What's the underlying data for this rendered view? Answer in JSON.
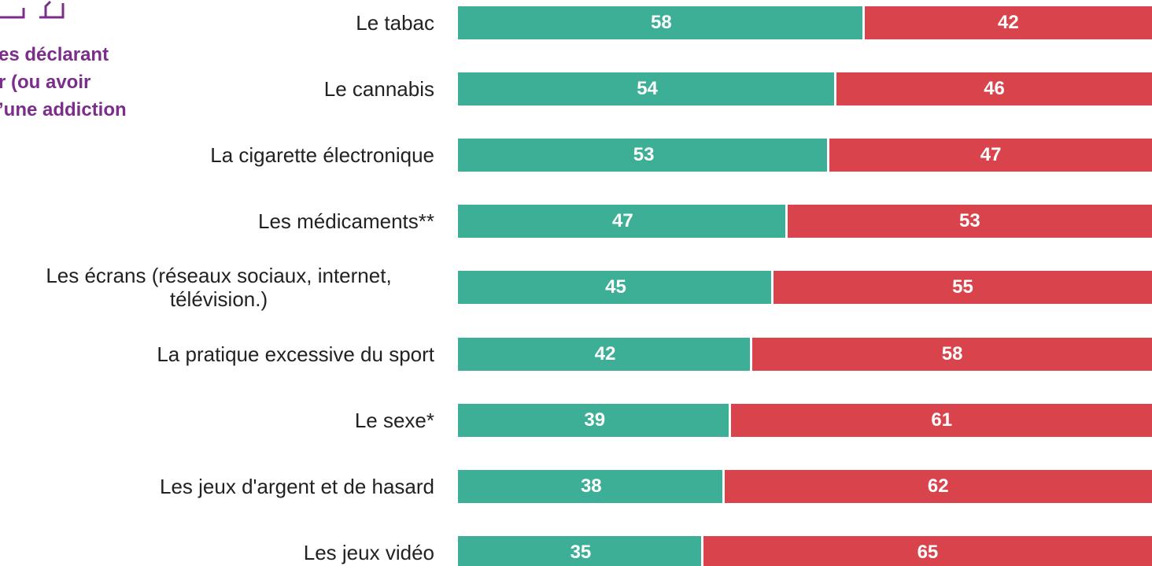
{
  "chart_data": {
    "type": "stacked-bar-horizontal",
    "annotations": [
      "es déclarant",
      "r (ou avoir",
      "’une addiction"
    ],
    "categories": [
      "Le tabac",
      "Le cannabis",
      "La cigarette électronique",
      "Les médicaments**",
      "Les écrans (réseaux sociaux, internet, télévision.)",
      "La pratique excessive du sport",
      "Le sexe*",
      "Les jeux d'argent et de hasard",
      "Les jeux vidéo"
    ],
    "series": [
      {
        "color": "#3daf96",
        "values": [
          58,
          54,
          53,
          47,
          45,
          42,
          39,
          38,
          35
        ]
      },
      {
        "color": "#d9434b",
        "values": [
          42,
          46,
          47,
          53,
          55,
          58,
          61,
          62,
          65
        ]
      }
    ],
    "xlim": [
      0,
      100
    ]
  }
}
